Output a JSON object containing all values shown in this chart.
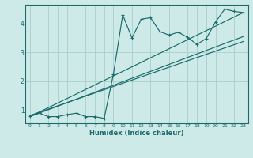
{
  "xlabel": "Humidex (Indice chaleur)",
  "ylabel": "",
  "bg_color": "#ceeae8",
  "grid_color": "#a8ceca",
  "line_color": "#1a6b6b",
  "xlim": [
    -0.5,
    23.5
  ],
  "ylim": [
    0.55,
    4.65
  ],
  "xticks": [
    0,
    1,
    2,
    3,
    4,
    5,
    6,
    7,
    8,
    9,
    10,
    11,
    12,
    13,
    14,
    15,
    16,
    17,
    18,
    19,
    20,
    21,
    22,
    23
  ],
  "yticks": [
    1,
    2,
    3,
    4
  ],
  "curve1_x": [
    0,
    1,
    2,
    3,
    4,
    5,
    6,
    7,
    8,
    9,
    10,
    11,
    12,
    13,
    14,
    15,
    16,
    17,
    18,
    19,
    20,
    21,
    22,
    23
  ],
  "curve1_y": [
    0.8,
    0.9,
    0.78,
    0.78,
    0.85,
    0.9,
    0.78,
    0.78,
    0.72,
    2.25,
    4.3,
    3.5,
    4.15,
    4.2,
    3.72,
    3.6,
    3.7,
    3.52,
    3.28,
    3.48,
    4.05,
    4.5,
    4.42,
    4.38
  ],
  "line1_x": [
    0,
    23
  ],
  "line1_y": [
    0.78,
    4.38
  ],
  "line2_x": [
    0,
    23
  ],
  "line2_y": [
    0.78,
    3.55
  ],
  "line3_x": [
    0,
    23
  ],
  "line3_y": [
    0.82,
    3.38
  ]
}
